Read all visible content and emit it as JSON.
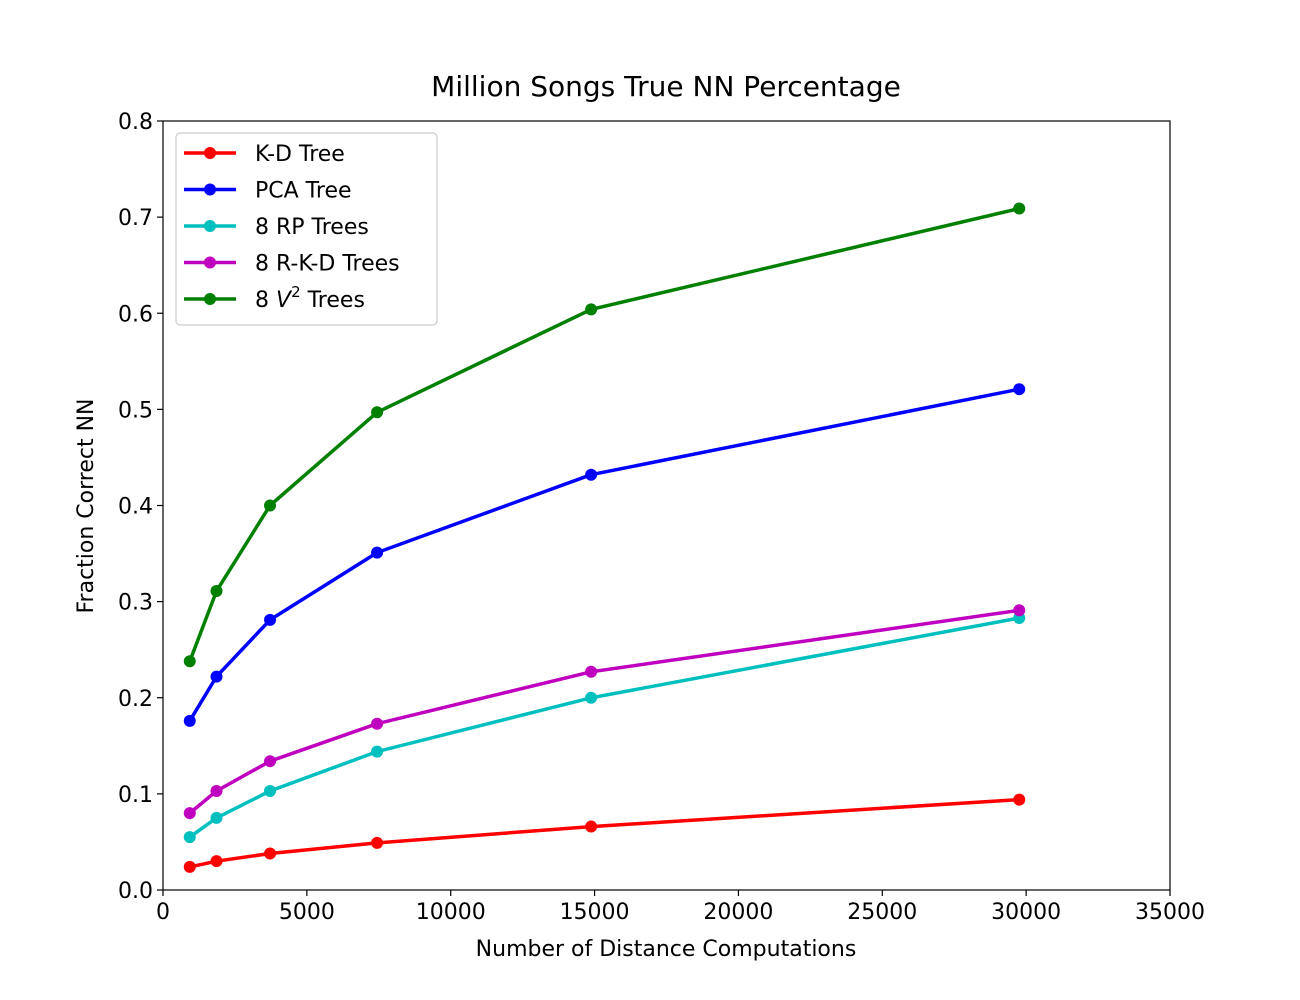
{
  "chart_data": {
    "type": "line",
    "title": "Million Songs True NN Percentage",
    "xlabel": "Number of Distance Computations",
    "ylabel": "Fraction Correct NN",
    "xlim": [
      0,
      35000
    ],
    "ylim": [
      0,
      0.8
    ],
    "xticks": [
      0,
      5000,
      10000,
      15000,
      20000,
      25000,
      30000,
      35000
    ],
    "xtick_labels": [
      "0",
      "5000",
      "10000",
      "15000",
      "20000",
      "25000",
      "30000",
      "35000"
    ],
    "yticks": [
      0.0,
      0.1,
      0.2,
      0.3,
      0.4,
      0.5,
      0.6,
      0.7,
      0.8
    ],
    "ytick_labels": [
      "0.0",
      "0.1",
      "0.2",
      "0.3",
      "0.4",
      "0.5",
      "0.6",
      "0.7",
      "0.8"
    ],
    "grid": false,
    "legend_position": "upper-left",
    "x": [
      930,
      1860,
      3720,
      7440,
      14880,
      29760
    ],
    "series": [
      {
        "name": "K-D Tree",
        "color": "#ff0000",
        "values": [
          0.024,
          0.03,
          0.038,
          0.049,
          0.066,
          0.094
        ]
      },
      {
        "name": "PCA Tree",
        "color": "#0000ff",
        "values": [
          0.176,
          0.222,
          0.281,
          0.351,
          0.432,
          0.521
        ]
      },
      {
        "name": "8 RP Trees",
        "color": "#00bfbf",
        "values": [
          0.055,
          0.075,
          0.103,
          0.144,
          0.2,
          0.283
        ]
      },
      {
        "name": "8 R-K-D Trees",
        "color": "#bf00bf",
        "values": [
          0.08,
          0.103,
          0.134,
          0.173,
          0.227,
          0.291
        ]
      },
      {
        "name": "8 V² Trees",
        "name_parts": {
          "prefix": "8 ",
          "var": "V",
          "sup": "2",
          "suffix": " Trees"
        },
        "color": "#008000",
        "values": [
          0.238,
          0.311,
          0.4,
          0.497,
          0.604,
          0.709
        ]
      }
    ]
  }
}
